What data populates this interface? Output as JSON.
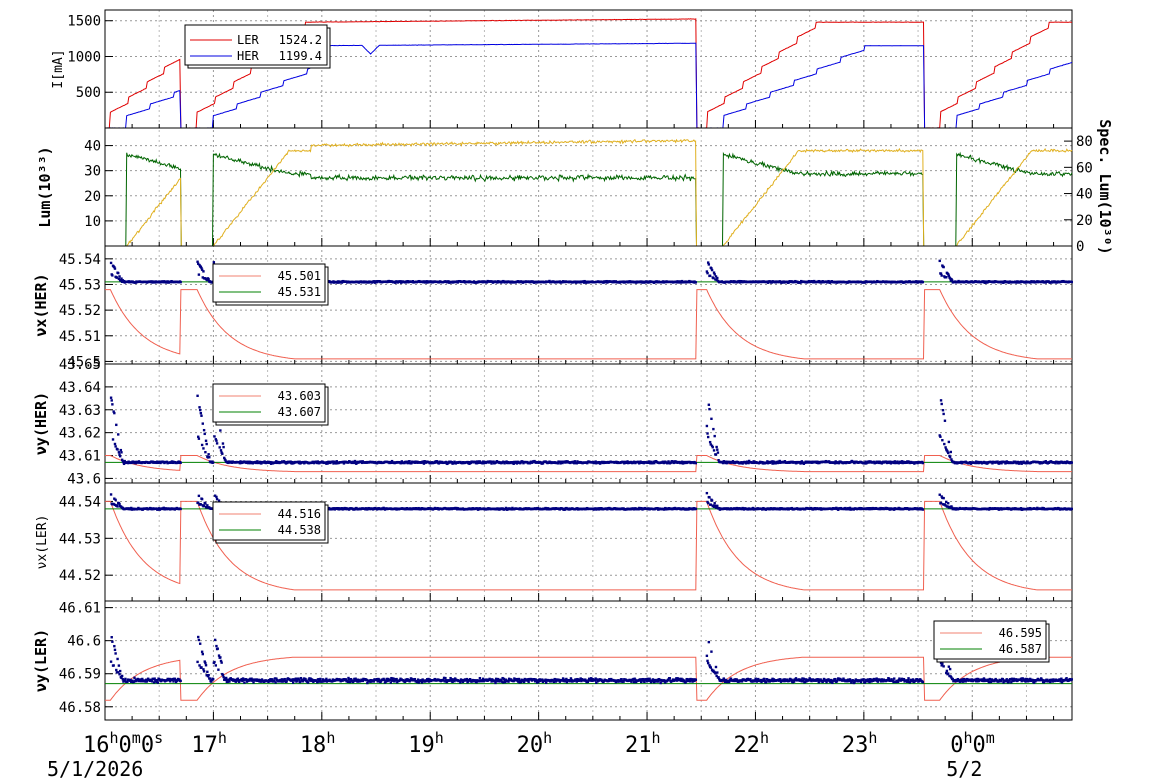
{
  "chart_data": {
    "type": "line",
    "x_axis": {
      "range": [
        "16:00",
        "24:55"
      ],
      "ticks": [
        {
          "t": 0.0,
          "main": "16",
          "sup1": "h",
          "mid": "0",
          "sup2": "m",
          "end": "0",
          "sup3": "s"
        },
        {
          "t": 1.0,
          "main": "17",
          "sup1": "h"
        },
        {
          "t": 2.0,
          "main": "18",
          "sup1": "h"
        },
        {
          "t": 3.0,
          "main": "19",
          "sup1": "h"
        },
        {
          "t": 4.0,
          "main": "20",
          "sup1": "h"
        },
        {
          "t": 5.0,
          "main": "21",
          "sup1": "h"
        },
        {
          "t": 6.0,
          "main": "22",
          "sup1": "h"
        },
        {
          "t": 7.0,
          "main": "23",
          "sup1": "h"
        },
        {
          "t": 8.0,
          "main": "0",
          "sup1": "h",
          "mid": "0",
          "sup2": "m"
        }
      ],
      "dates": [
        {
          "t": 0.0,
          "text": "5/1/2026"
        },
        {
          "t": 8.0,
          "text": "5/2"
        }
      ]
    },
    "panels": [
      {
        "id": "current",
        "ylabel": "I[mA]",
        "ylim": [
          0,
          1650
        ],
        "yticks": [
          500,
          1000,
          1500
        ],
        "legend": [
          {
            "name": "LER",
            "value": "1524.2",
            "color": "#e00000"
          },
          {
            "name": "HER",
            "value": "1199.4",
            "color": "#0000e0"
          }
        ]
      },
      {
        "id": "lum",
        "ylabel": "Lum(10³³)",
        "ylim": [
          0,
          47
        ],
        "yticks": [
          10,
          20,
          30,
          40
        ],
        "right_ylabel": "Spec. Lum(10³⁰)",
        "right_ylim": [
          0,
          90
        ],
        "right_yticks": [
          0,
          20,
          40,
          60,
          80
        ],
        "series_colors": {
          "lum": "#e0b020",
          "spec": "#006000"
        }
      },
      {
        "id": "nux_her",
        "ylabel": "νx(HER)",
        "ylim": [
          45.499,
          45.545
        ],
        "yticks": [
          45.5,
          45.51,
          45.52,
          45.53,
          45.54
        ],
        "ytick_labels": [
          "45.5",
          "45.51",
          "45.52",
          "45.53",
          "45.54"
        ],
        "legend": [
          {
            "value": "45.501",
            "color": "#f08070"
          },
          {
            "value": "45.531",
            "color": "#008000"
          }
        ],
        "reference": 45.531
      },
      {
        "id": "nuy_her",
        "ylabel": "νy(HER)",
        "ylim": [
          43.598,
          43.65
        ],
        "yticks": [
          43.6,
          43.61,
          43.62,
          43.63,
          43.64,
          43.65
        ],
        "ytick_labels": [
          "43.6",
          "43.61",
          "43.62",
          "43.63",
          "43.64",
          "43.65"
        ],
        "legend": [
          {
            "value": "43.603",
            "color": "#f08070"
          },
          {
            "value": "43.607",
            "color": "#008000"
          }
        ],
        "reference": 43.607
      },
      {
        "id": "nux_ler",
        "ylabel": "νx(LER)",
        "ylim": [
          44.513,
          44.545
        ],
        "yticks": [
          44.52,
          44.53,
          44.54
        ],
        "ytick_labels": [
          "44.52",
          "44.53",
          "44.54"
        ],
        "legend": [
          {
            "value": "44.516",
            "color": "#f08070"
          },
          {
            "value": "44.538",
            "color": "#008000"
          }
        ],
        "reference": 44.538
      },
      {
        "id": "nuy_ler",
        "ylabel": "νy(LER)",
        "ylim": [
          46.576,
          46.612
        ],
        "yticks": [
          46.58,
          46.59,
          46.6,
          46.61
        ],
        "ytick_labels": [
          "46.58",
          "46.59",
          "46.6",
          "46.61"
        ],
        "legend": [
          {
            "value": "46.595",
            "color": "#f08070"
          },
          {
            "value": "46.587",
            "color": "#008000"
          }
        ],
        "reference": 46.587
      }
    ],
    "series_meta": {
      "scatter_color": "#000080",
      "red_line": "#f06050",
      "gold_line": "#e0b020",
      "green_line": "#006400"
    }
  }
}
